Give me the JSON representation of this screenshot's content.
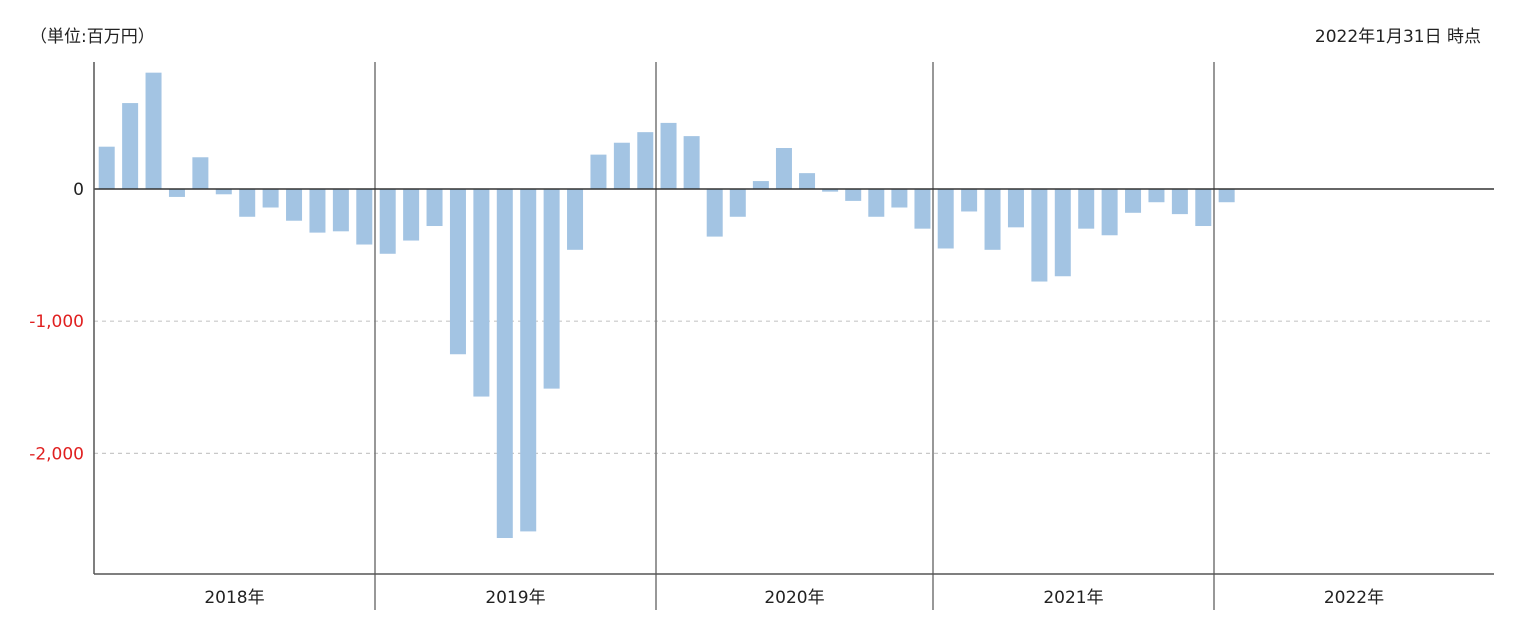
{
  "header": {
    "unit_label": "（単位:百万円）",
    "date_label": "2022年1月31日 時点"
  },
  "colors": {
    "bar": "#a3c4e3",
    "negative_tick": "#e02020",
    "zero_tick": "#222222",
    "axis": "#555555",
    "zero_line": "#333333",
    "grid": "#c8c8c8"
  },
  "chart_data": {
    "type": "bar",
    "title": "",
    "xlabel": "",
    "ylabel": "",
    "ylim": [
      -2900,
      960
    ],
    "y_ticks": [
      {
        "value": 0,
        "label": "0"
      },
      {
        "value": -1000,
        "label": "-1,000"
      },
      {
        "value": -2000,
        "label": "-2,000"
      }
    ],
    "grid": "dashed horizontal",
    "years": [
      {
        "label": "2018年",
        "months": 12
      },
      {
        "label": "2019年",
        "months": 12
      },
      {
        "label": "2020年",
        "months": 12
      },
      {
        "label": "2021年",
        "months": 12
      },
      {
        "label": "2022年",
        "months": 12
      }
    ],
    "series": [
      {
        "values": [
          320,
          650,
          880,
          -60,
          240,
          -40,
          -210,
          -140,
          -240,
          -330,
          -320,
          -420,
          -490,
          -390,
          -280,
          -1250,
          -1570,
          -2640,
          -2590,
          -1510,
          -460,
          260,
          350,
          430,
          500,
          400,
          -360,
          -210,
          60,
          310,
          120,
          -20,
          -90,
          -210,
          -140,
          -300,
          -450,
          -170,
          -460,
          -290,
          -700,
          -660,
          -300,
          -350,
          -180,
          -100,
          -190,
          -280,
          -100
        ]
      }
    ]
  }
}
